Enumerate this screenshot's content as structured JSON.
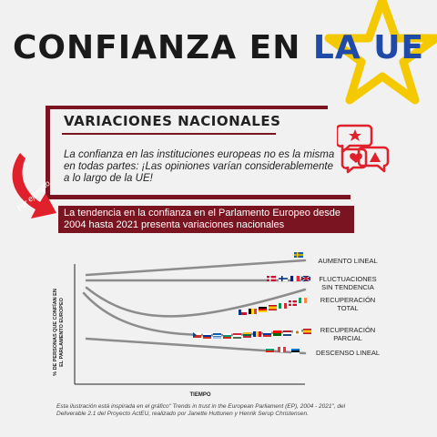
{
  "title": {
    "part1": "CONFIANZA EN ",
    "part2": "LA UE"
  },
  "colors": {
    "accent": "#7a1420",
    "eu_blue": "#1f4aa8",
    "star": "#f5c900",
    "icon_red": "#e0202a"
  },
  "section": {
    "heading": "VARIACIONES NACIONALES",
    "description": "La confianza en las instituciones europeas no es la misma en todas partes: ¡Las opiniones varían considerablemente a lo largo de la UE!"
  },
  "example_tag": "Por ejemplo",
  "banner": "La tendencia en la confianza en el Parlamento Europeo desde 2004 hasta 2021 presenta variaciones nacionales",
  "diagram": {
    "ylabel_line1": "% DE PERSONAS QUE CONFÍAN EN",
    "ylabel_line2": "EL PARLAMENTO EUROPEO",
    "xlabel": "TIEMPO",
    "trends": [
      {
        "line1": "AUMENTO LINEAL",
        "line2": ""
      },
      {
        "line1": "FLUCTUACIONES",
        "line2": "SIN TENDENCIA"
      },
      {
        "line1": "RECUPERACIÓN",
        "line2": "TOTAL"
      },
      {
        "line1": "RECUPERACIÓN",
        "line2": "PARCIAL"
      },
      {
        "line1": "DESCENSO LINEAL",
        "line2": ""
      }
    ]
  },
  "footnote": "Esta ilustración está inspirada en el gráfico\" Trends in trust in the European Parliament (EP), 2004 - 2021\", del Deliverable 2.1 del Proyecto ActEU, realizado por Janette Huttunen y Henrik Serup Christensen."
}
